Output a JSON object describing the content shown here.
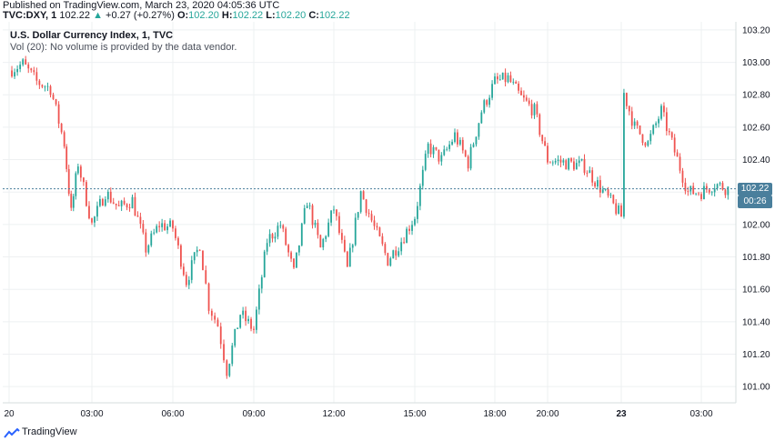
{
  "header": {
    "published": "Published on TradingView.com, March 23, 2020 04:05:36 UTC",
    "symbol": "TVC:DXY, 1",
    "last": "102.22",
    "arrow": "▲",
    "change": "+0.27 (+0.27%)",
    "o_label": "O:",
    "o_value": "102.20",
    "h_label": "H:",
    "h_value": "102.22",
    "l_label": "L:",
    "l_value": "102.20",
    "c_label": "C:",
    "c_value": "102.22"
  },
  "legend": {
    "title": "U.S. Dollar Currency Index, 1, TVC",
    "volume_note": "Vol (20): No volume is provided by the data vendor."
  },
  "price_tag": {
    "price": "102.22",
    "countdown": "00:26"
  },
  "footer": {
    "brand": "TradingView"
  },
  "colors": {
    "up": "#26a69a",
    "down": "#ef5350",
    "grid": "#eef0f2",
    "last_line": "#4a7f9c"
  },
  "chart_data": {
    "type": "line",
    "title": "U.S. Dollar Currency Index, 1, TVC",
    "xlabel": "",
    "ylabel": "",
    "ylim": [
      100.9,
      103.25
    ],
    "x_tick_labels": [
      "20",
      "03:00",
      "06:00",
      "09:00",
      "12:00",
      "15:00",
      "18:00",
      "20:00",
      "23",
      "03:00"
    ],
    "y_tick_labels": [
      "101.00",
      "101.20",
      "101.40",
      "101.60",
      "101.80",
      "102.00",
      "102.20",
      "102.40",
      "102.60",
      "102.80",
      "103.00",
      "103.20"
    ],
    "series": [
      {
        "x": [
          "20 00:00",
          "20 00:30",
          "20 01:00",
          "20 01:30",
          "20 02:00",
          "20 02:15",
          "20 02:30",
          "20 03:00",
          "20 03:30",
          "20 04:00",
          "20 04:30",
          "20 05:00",
          "20 05:30",
          "20 06:00",
          "20 06:30",
          "20 07:00",
          "20 07:20",
          "20 07:40",
          "20 08:00",
          "20 08:30",
          "20 09:00",
          "20 09:30",
          "20 10:00",
          "20 10:30",
          "20 11:00",
          "20 11:30",
          "20 12:00",
          "20 12:30",
          "20 13:00",
          "20 13:30",
          "20 14:00",
          "20 14:30",
          "20 15:00",
          "20 15:30",
          "20 16:00",
          "20 16:30",
          "20 17:00",
          "20 17:30",
          "20 18:00",
          "20 18:30",
          "20 19:00",
          "20 19:30",
          "20 20:00",
          "20 20:30",
          "20 21:00",
          "23 00:00",
          "23 00:30",
          "23 01:00",
          "23 01:30",
          "23 02:00",
          "23 02:30",
          "23 03:00",
          "23 03:30",
          "23 04:00"
        ],
        "values": [
          102.95,
          102.99,
          102.88,
          102.84,
          102.5,
          102.07,
          102.38,
          102.0,
          102.2,
          102.1,
          102.15,
          101.85,
          102.0,
          101.98,
          101.65,
          101.88,
          101.5,
          101.38,
          101.1,
          101.45,
          101.35,
          101.9,
          102.0,
          101.7,
          102.15,
          101.85,
          102.1,
          101.72,
          102.2,
          101.98,
          101.78,
          101.9,
          102.05,
          102.48,
          102.4,
          102.55,
          102.38,
          102.7,
          102.88,
          102.9,
          102.78,
          102.7,
          102.4,
          102.36,
          102.05,
          102.86,
          102.6,
          102.5,
          102.7,
          102.45,
          102.2,
          102.2,
          102.25,
          102.22
        ]
      }
    ]
  }
}
